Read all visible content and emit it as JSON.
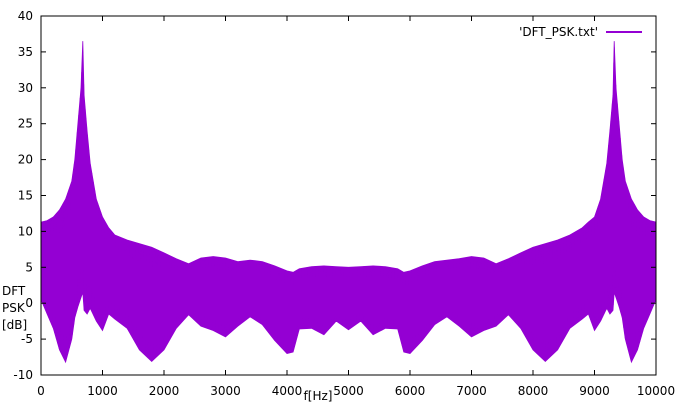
{
  "chart_data": {
    "type": "line",
    "title": "",
    "xlabel": "f[Hz]",
    "ylabel": [
      "DFT",
      "PSK",
      "[dB]"
    ],
    "xlim": [
      0,
      10000
    ],
    "ylim": [
      -10,
      40
    ],
    "xticks": [
      0,
      1000,
      2000,
      3000,
      4000,
      5000,
      6000,
      7000,
      8000,
      9000,
      10000
    ],
    "yticks": [
      -10,
      -5,
      0,
      5,
      10,
      15,
      20,
      25,
      30,
      35,
      40
    ],
    "grid": false,
    "legend": "top-right",
    "series": [
      {
        "name": "'DFT_PSK.txt'",
        "color": "#9400d3",
        "style": "dense oscillating line shown as filled envelope",
        "x": [
          0,
          100,
          200,
          300,
          400,
          500,
          550,
          600,
          650,
          680,
          700,
          750,
          800,
          900,
          1000,
          1100,
          1200,
          1400,
          1600,
          1800,
          2000,
          2200,
          2400,
          2600,
          2800,
          3000,
          3200,
          3400,
          3600,
          3800,
          4000,
          4100,
          4200,
          4400,
          4600,
          4800,
          5000,
          5200,
          5400,
          5600,
          5800,
          5900,
          6000,
          6200,
          6400,
          6600,
          6800,
          7000,
          7200,
          7400,
          7600,
          7800,
          8000,
          8200,
          8400,
          8600,
          8800,
          8900,
          9000,
          9100,
          9200,
          9250,
          9300,
          9320,
          9350,
          9400,
          9450,
          9500,
          9600,
          9700,
          9800,
          9900,
          10000
        ],
        "upper": [
          11.3,
          11.5,
          12,
          13,
          14.5,
          17,
          20,
          25,
          30,
          36.5,
          29,
          24,
          19.5,
          14.5,
          12,
          10.5,
          9.5,
          8.8,
          8.3,
          7.8,
          7,
          6.2,
          5.5,
          6.3,
          6.5,
          6.3,
          5.8,
          6,
          5.8,
          5.2,
          4.5,
          4.3,
          4.8,
          5.1,
          5.2,
          5.1,
          5,
          5.1,
          5.2,
          5.1,
          4.8,
          4.3,
          4.5,
          5.2,
          5.8,
          6,
          6.2,
          6.5,
          6.3,
          5.5,
          6.2,
          7,
          7.8,
          8.3,
          8.8,
          9.5,
          10.5,
          11.3,
          12,
          14.5,
          19.5,
          24,
          29,
          36.5,
          30,
          25,
          20,
          17,
          14.5,
          13,
          12,
          11.5,
          11.3
        ],
        "lower": [
          0.5,
          -1.5,
          -3.5,
          -6.5,
          -8.2,
          -5,
          -2,
          -0.5,
          0.8,
          1.5,
          -1,
          -1.5,
          -0.7,
          -2.5,
          -3.8,
          -1.5,
          -2.2,
          -3.5,
          -6.5,
          -8.1,
          -6.5,
          -3.5,
          -1.6,
          -3.2,
          -3.8,
          -4.7,
          -3.2,
          -1.9,
          -3,
          -5.2,
          -7,
          -6.8,
          -3.6,
          -3.5,
          -4.4,
          -2.5,
          -3.7,
          -2.5,
          -4.4,
          -3.5,
          -3.6,
          -6.8,
          -7,
          -5.2,
          -3,
          -1.9,
          -3.2,
          -4.7,
          -3.8,
          -3.2,
          -1.6,
          -3.5,
          -6.5,
          -8.1,
          -6.5,
          -3.5,
          -2.2,
          -1.5,
          -3.8,
          -2.5,
          -0.7,
          -1.5,
          -1,
          1.5,
          0.8,
          -0.5,
          -2,
          -5,
          -8.2,
          -6.5,
          -3.5,
          -1.5,
          0.5
        ]
      }
    ]
  }
}
